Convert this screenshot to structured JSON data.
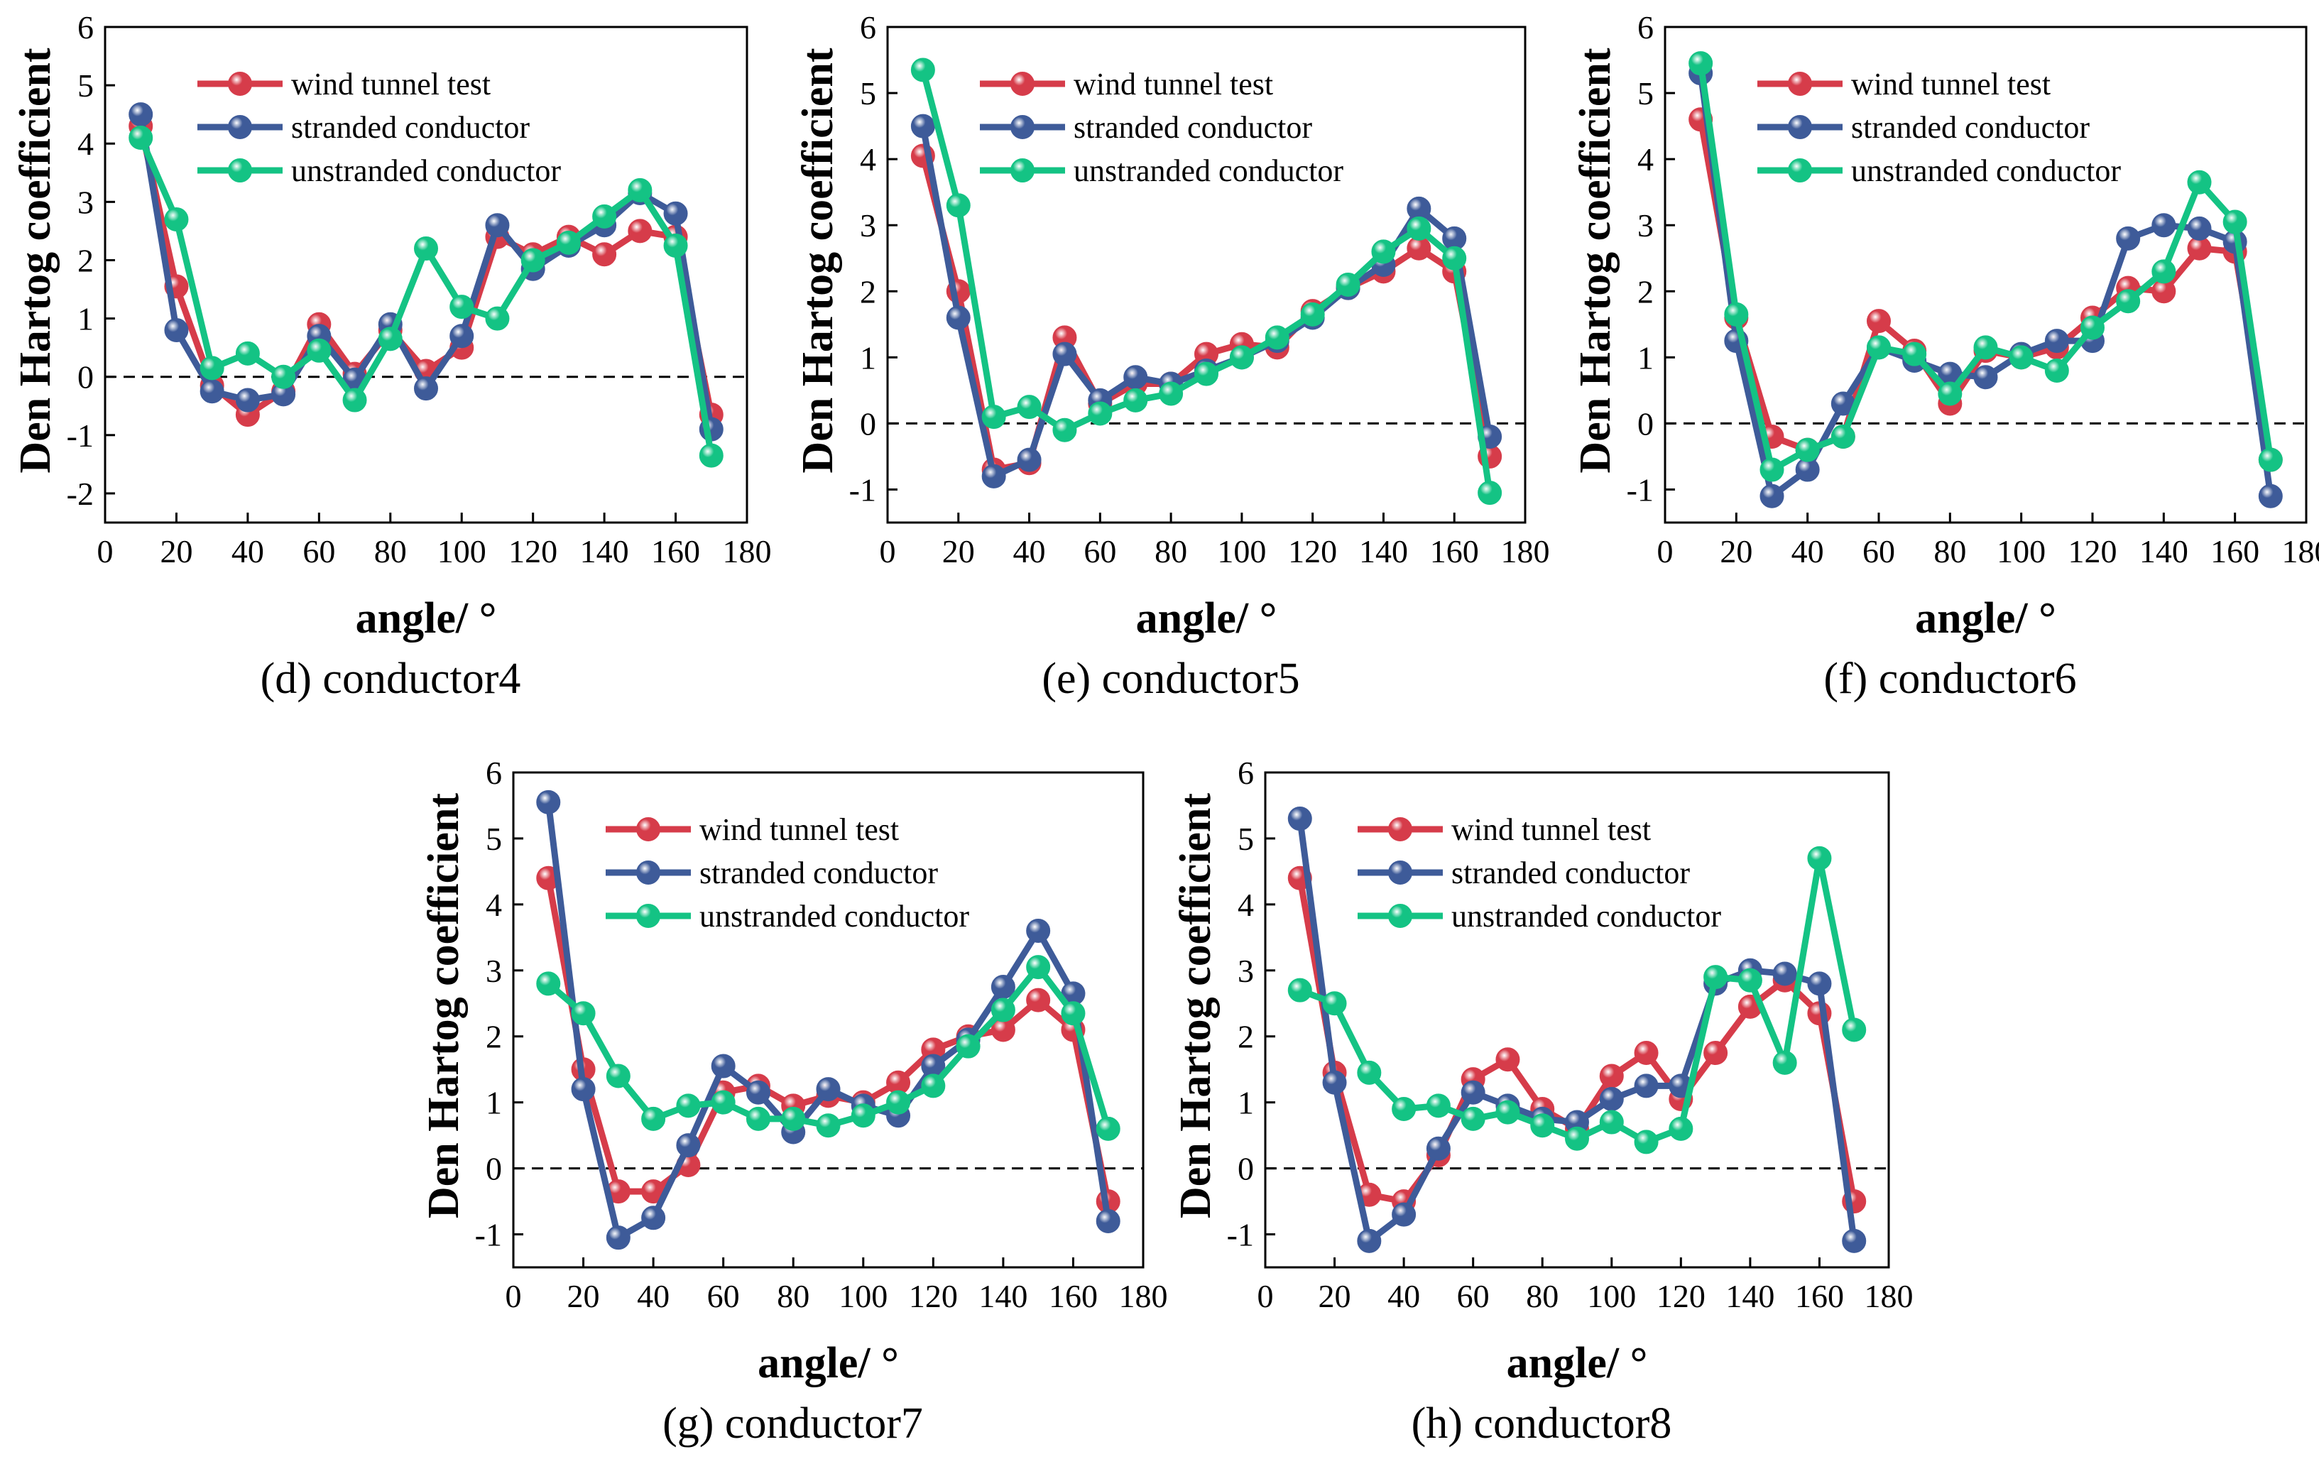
{
  "figure": {
    "series_names": [
      "wind tunnel test",
      "stranded conductor",
      "unstranded conductor"
    ],
    "series_colors": [
      "#d63c4a",
      "#3e5b99",
      "#14c384"
    ],
    "x_ticks": [
      "0",
      "20",
      "40",
      "60",
      "80",
      "100",
      "120",
      "140",
      "160",
      "180"
    ]
  },
  "chart_data": [
    {
      "type": "line",
      "caption": "(d) conductor4",
      "xlabel": "angle/ °",
      "ylabel": "Den Hartog coefficient",
      "xlim": [
        0,
        180
      ],
      "ylim": [
        -2.5,
        6
      ],
      "yticks": [
        "6",
        "5",
        "4",
        "3",
        "2",
        "1",
        "0",
        "-1",
        "-2"
      ],
      "reference_line": 0,
      "x": [
        10,
        20,
        30,
        40,
        50,
        60,
        70,
        80,
        90,
        100,
        110,
        120,
        130,
        140,
        150,
        160,
        170
      ],
      "series": [
        {
          "name": "wind tunnel test",
          "values": [
            4.3,
            1.55,
            -0.15,
            -0.65,
            -0.25,
            0.9,
            0.05,
            0.8,
            0.1,
            0.5,
            2.4,
            2.1,
            2.4,
            2.1,
            2.5,
            2.4,
            -0.65
          ]
        },
        {
          "name": "stranded conductor",
          "values": [
            4.5,
            0.8,
            -0.25,
            -0.4,
            -0.3,
            0.7,
            -0.05,
            0.9,
            -0.2,
            0.7,
            2.6,
            1.85,
            2.25,
            2.6,
            3.15,
            2.8,
            -0.9
          ]
        },
        {
          "name": "unstranded conductor",
          "values": [
            4.1,
            2.7,
            0.15,
            0.4,
            0.0,
            0.45,
            -0.4,
            0.65,
            2.2,
            1.2,
            1.0,
            2.0,
            2.3,
            2.75,
            3.2,
            2.25,
            -1.35
          ]
        }
      ]
    },
    {
      "type": "line",
      "caption": "(e) conductor5",
      "xlabel": "angle/ °",
      "ylabel": "Den Hartog coefficient",
      "xlim": [
        0,
        180
      ],
      "ylim": [
        -1.5,
        6
      ],
      "yticks": [
        "6",
        "5",
        "4",
        "3",
        "2",
        "1",
        "0",
        "-1"
      ],
      "reference_line": 0,
      "x": [
        10,
        20,
        30,
        40,
        50,
        60,
        70,
        80,
        90,
        100,
        110,
        120,
        130,
        140,
        150,
        160,
        170
      ],
      "series": [
        {
          "name": "wind tunnel test",
          "values": [
            4.05,
            2.0,
            -0.7,
            -0.6,
            1.3,
            0.3,
            0.6,
            0.6,
            1.05,
            1.2,
            1.15,
            1.7,
            2.05,
            2.3,
            2.65,
            2.3,
            -0.5
          ]
        },
        {
          "name": "stranded conductor",
          "values": [
            4.5,
            1.6,
            -0.8,
            -0.55,
            1.05,
            0.35,
            0.7,
            0.6,
            0.8,
            1.0,
            1.25,
            1.6,
            2.05,
            2.4,
            3.25,
            2.8,
            -0.2
          ]
        },
        {
          "name": "unstranded conductor",
          "values": [
            5.35,
            3.3,
            0.1,
            0.25,
            -0.1,
            0.15,
            0.35,
            0.45,
            0.75,
            1.0,
            1.3,
            1.65,
            2.1,
            2.6,
            2.95,
            2.5,
            -1.05
          ]
        }
      ]
    },
    {
      "type": "line",
      "caption": "(f) conductor6",
      "xlabel": "angle/ °",
      "ylabel": "Den Hartog coefficient",
      "xlim": [
        0,
        180
      ],
      "ylim": [
        -1.5,
        6
      ],
      "yticks": [
        "6",
        "5",
        "4",
        "3",
        "2",
        "1",
        "0",
        "-1"
      ],
      "reference_line": 0,
      "x": [
        10,
        20,
        30,
        40,
        50,
        60,
        70,
        80,
        90,
        100,
        110,
        120,
        130,
        140,
        150,
        160,
        170
      ],
      "series": [
        {
          "name": "wind tunnel test",
          "values": [
            4.6,
            1.6,
            -0.2,
            -0.4,
            -0.2,
            1.55,
            1.1,
            0.3,
            1.1,
            1.0,
            1.15,
            1.6,
            2.05,
            2.0,
            2.65,
            2.6,
            -0.55
          ]
        },
        {
          "name": "stranded conductor",
          "values": [
            5.3,
            1.25,
            -1.1,
            -0.7,
            0.3,
            1.15,
            0.95,
            0.75,
            0.7,
            1.05,
            1.25,
            1.25,
            2.8,
            3.0,
            2.95,
            2.75,
            -1.1
          ]
        },
        {
          "name": "unstranded conductor",
          "values": [
            5.45,
            1.65,
            -0.7,
            -0.4,
            -0.2,
            1.15,
            1.05,
            0.45,
            1.15,
            1.0,
            0.8,
            1.45,
            1.85,
            2.3,
            3.65,
            3.05,
            -0.55
          ]
        }
      ]
    },
    {
      "type": "line",
      "caption": "(g) conductor7",
      "xlabel": "angle/ °",
      "ylabel": "Den Hartog coefficient",
      "xlim": [
        0,
        180
      ],
      "ylim": [
        -1.5,
        6
      ],
      "yticks": [
        "6",
        "5",
        "4",
        "3",
        "2",
        "1",
        "0",
        "-1"
      ],
      "reference_line": 0,
      "x": [
        10,
        20,
        30,
        40,
        50,
        60,
        70,
        80,
        90,
        100,
        110,
        120,
        130,
        140,
        150,
        160,
        170
      ],
      "series": [
        {
          "name": "wind tunnel test",
          "values": [
            4.4,
            1.5,
            -0.35,
            -0.35,
            0.05,
            1.15,
            1.25,
            0.95,
            1.1,
            1.0,
            1.3,
            1.8,
            2.0,
            2.1,
            2.55,
            2.1,
            -0.5
          ]
        },
        {
          "name": "stranded conductor",
          "values": [
            5.55,
            1.2,
            -1.05,
            -0.75,
            0.35,
            1.55,
            1.15,
            0.55,
            1.2,
            0.95,
            0.8,
            1.55,
            1.95,
            2.75,
            3.6,
            2.65,
            -0.8
          ]
        },
        {
          "name": "unstranded conductor",
          "values": [
            2.8,
            2.35,
            1.4,
            0.75,
            0.95,
            1.0,
            0.75,
            0.75,
            0.65,
            0.8,
            1.0,
            1.25,
            1.85,
            2.4,
            3.05,
            2.35,
            0.6
          ]
        }
      ]
    },
    {
      "type": "line",
      "caption": "(h) conductor8",
      "xlabel": "angle/ °",
      "ylabel": "Den Hartog coefficient",
      "xlim": [
        0,
        180
      ],
      "ylim": [
        -1.5,
        6
      ],
      "yticks": [
        "6",
        "5",
        "4",
        "3",
        "2",
        "1",
        "0",
        "-1"
      ],
      "reference_line": 0,
      "x": [
        10,
        20,
        30,
        40,
        50,
        60,
        70,
        80,
        90,
        100,
        110,
        120,
        130,
        140,
        150,
        160,
        170
      ],
      "series": [
        {
          "name": "wind tunnel test",
          "values": [
            4.4,
            1.45,
            -0.4,
            -0.5,
            0.2,
            1.35,
            1.65,
            0.9,
            0.6,
            1.4,
            1.75,
            1.05,
            1.75,
            2.45,
            2.85,
            2.35,
            -0.5
          ]
        },
        {
          "name": "stranded conductor",
          "values": [
            5.3,
            1.3,
            -1.1,
            -0.7,
            0.3,
            1.15,
            0.95,
            0.75,
            0.7,
            1.05,
            1.25,
            1.25,
            2.8,
            3.0,
            2.95,
            2.8,
            -1.1
          ]
        },
        {
          "name": "unstranded conductor",
          "values": [
            2.7,
            2.5,
            1.45,
            0.9,
            0.95,
            0.75,
            0.85,
            0.65,
            0.45,
            0.7,
            0.4,
            0.6,
            2.9,
            2.85,
            1.6,
            4.7,
            2.1
          ]
        }
      ]
    }
  ]
}
